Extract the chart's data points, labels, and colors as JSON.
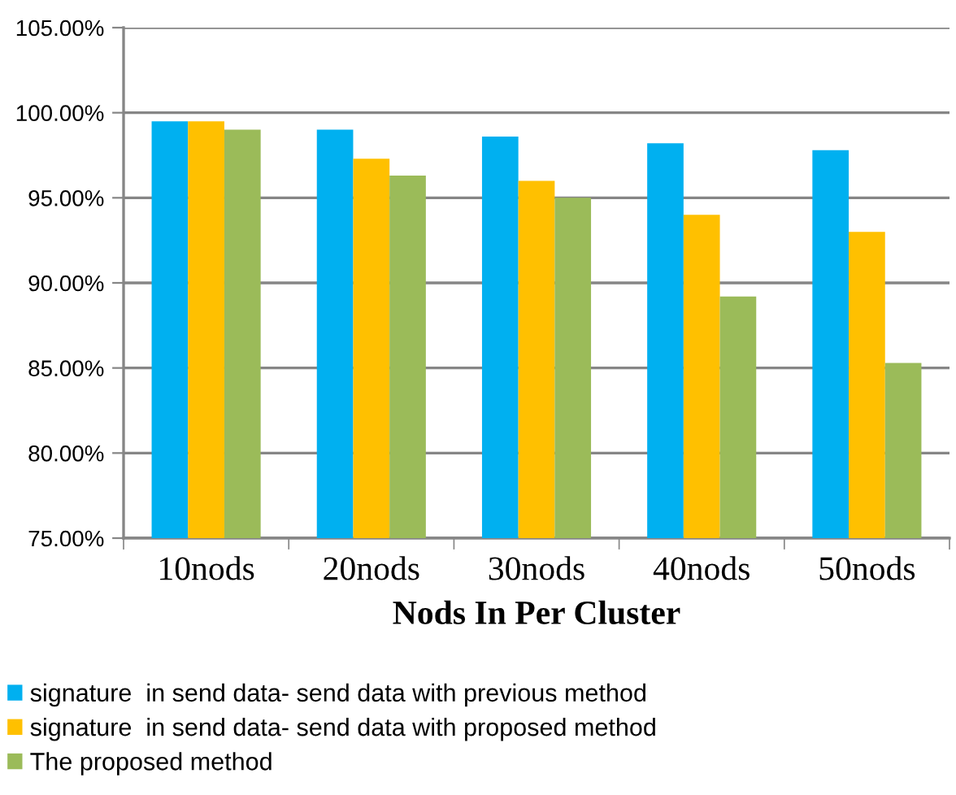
{
  "chart_data": {
    "type": "bar",
    "xlabel": "Nods In Per Cluster",
    "categories": [
      "10nods",
      "20nods",
      "30nods",
      "40nods",
      "50nods"
    ],
    "series": [
      {
        "name": "signature  in send data- send data with previous method",
        "color": "#00b0f0",
        "values": [
          99.5,
          99.0,
          98.6,
          98.2,
          97.8
        ]
      },
      {
        "name": "signature  in send data- send data with proposed method",
        "color": "#ffc000",
        "values": [
          99.5,
          97.3,
          96.0,
          94.0,
          93.0
        ]
      },
      {
        "name": "The proposed method",
        "color": "#9bbb59",
        "values": [
          99.0,
          96.3,
          95.0,
          89.2,
          85.3
        ]
      }
    ],
    "ylim": [
      75,
      105
    ],
    "yticks": [
      {
        "value": 75,
        "label": "75.00%"
      },
      {
        "value": 80,
        "label": "80.00%"
      },
      {
        "value": 85,
        "label": "85.00%"
      },
      {
        "value": 90,
        "label": "90.00%"
      },
      {
        "value": 95,
        "label": "95.00%"
      },
      {
        "value": 100,
        "label": "100.00%"
      },
      {
        "value": 105,
        "label": "105.00%"
      }
    ],
    "grid": "y",
    "legend": "bottom"
  }
}
